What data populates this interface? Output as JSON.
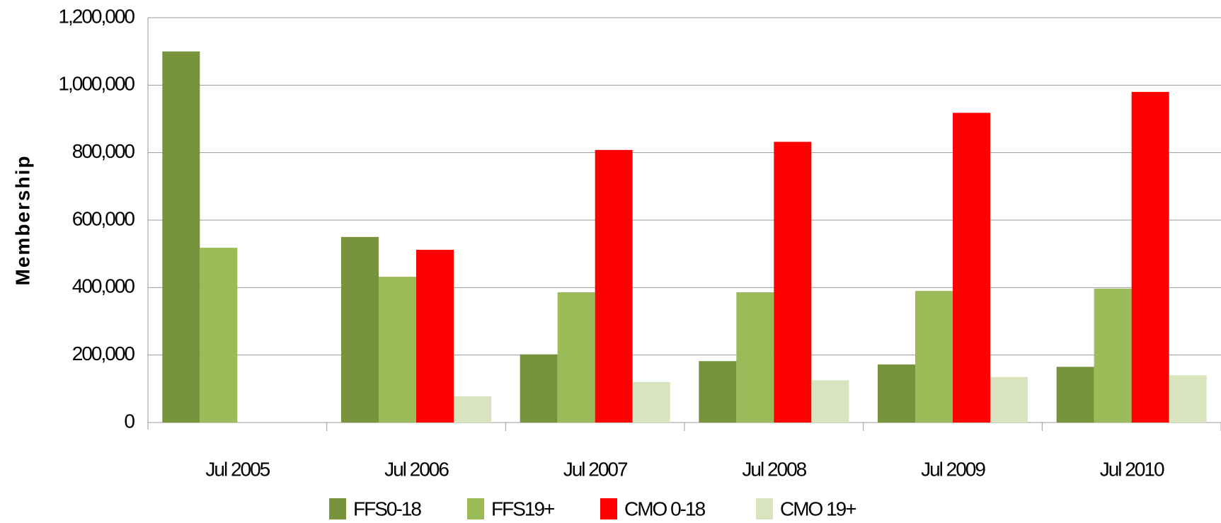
{
  "chart_data": {
    "type": "bar",
    "y_label": "Membership",
    "categories": [
      "Jul 2005",
      "Jul 2006",
      "Jul 2007",
      "Jul 2008",
      "Jul 2009",
      "Jul 2010"
    ],
    "series": [
      {
        "name": "FFS0-18",
        "color": "#77933c",
        "values": [
          1100000,
          550000,
          202000,
          182000,
          172000,
          165000
        ]
      },
      {
        "name": "FFS19+",
        "color": "#9bbb59",
        "values": [
          518000,
          432000,
          386000,
          386000,
          390000,
          397000
        ]
      },
      {
        "name": "CMO 0-18",
        "color": "#ff0000",
        "values": [
          null,
          512000,
          808000,
          832000,
          918000,
          980000
        ]
      },
      {
        "name": "CMO 19+",
        "color": "#d7e4bd",
        "values": [
          null,
          78000,
          120000,
          125000,
          135000,
          140000
        ]
      }
    ],
    "ylim": [
      0,
      1200000
    ],
    "yticks": [
      0,
      {
        "value": 200000,
        "label": "200,000"
      },
      {
        "value": 400000,
        "label": "400,000"
      },
      {
        "value": 600000,
        "label": "600,000"
      },
      {
        "value": 800000,
        "label": "800,000"
      },
      {
        "value": 1000000,
        "label": "1,000,000"
      },
      {
        "value": 1200000,
        "label": "1,200,000"
      }
    ],
    "grid": true,
    "legend": "bottom"
  }
}
